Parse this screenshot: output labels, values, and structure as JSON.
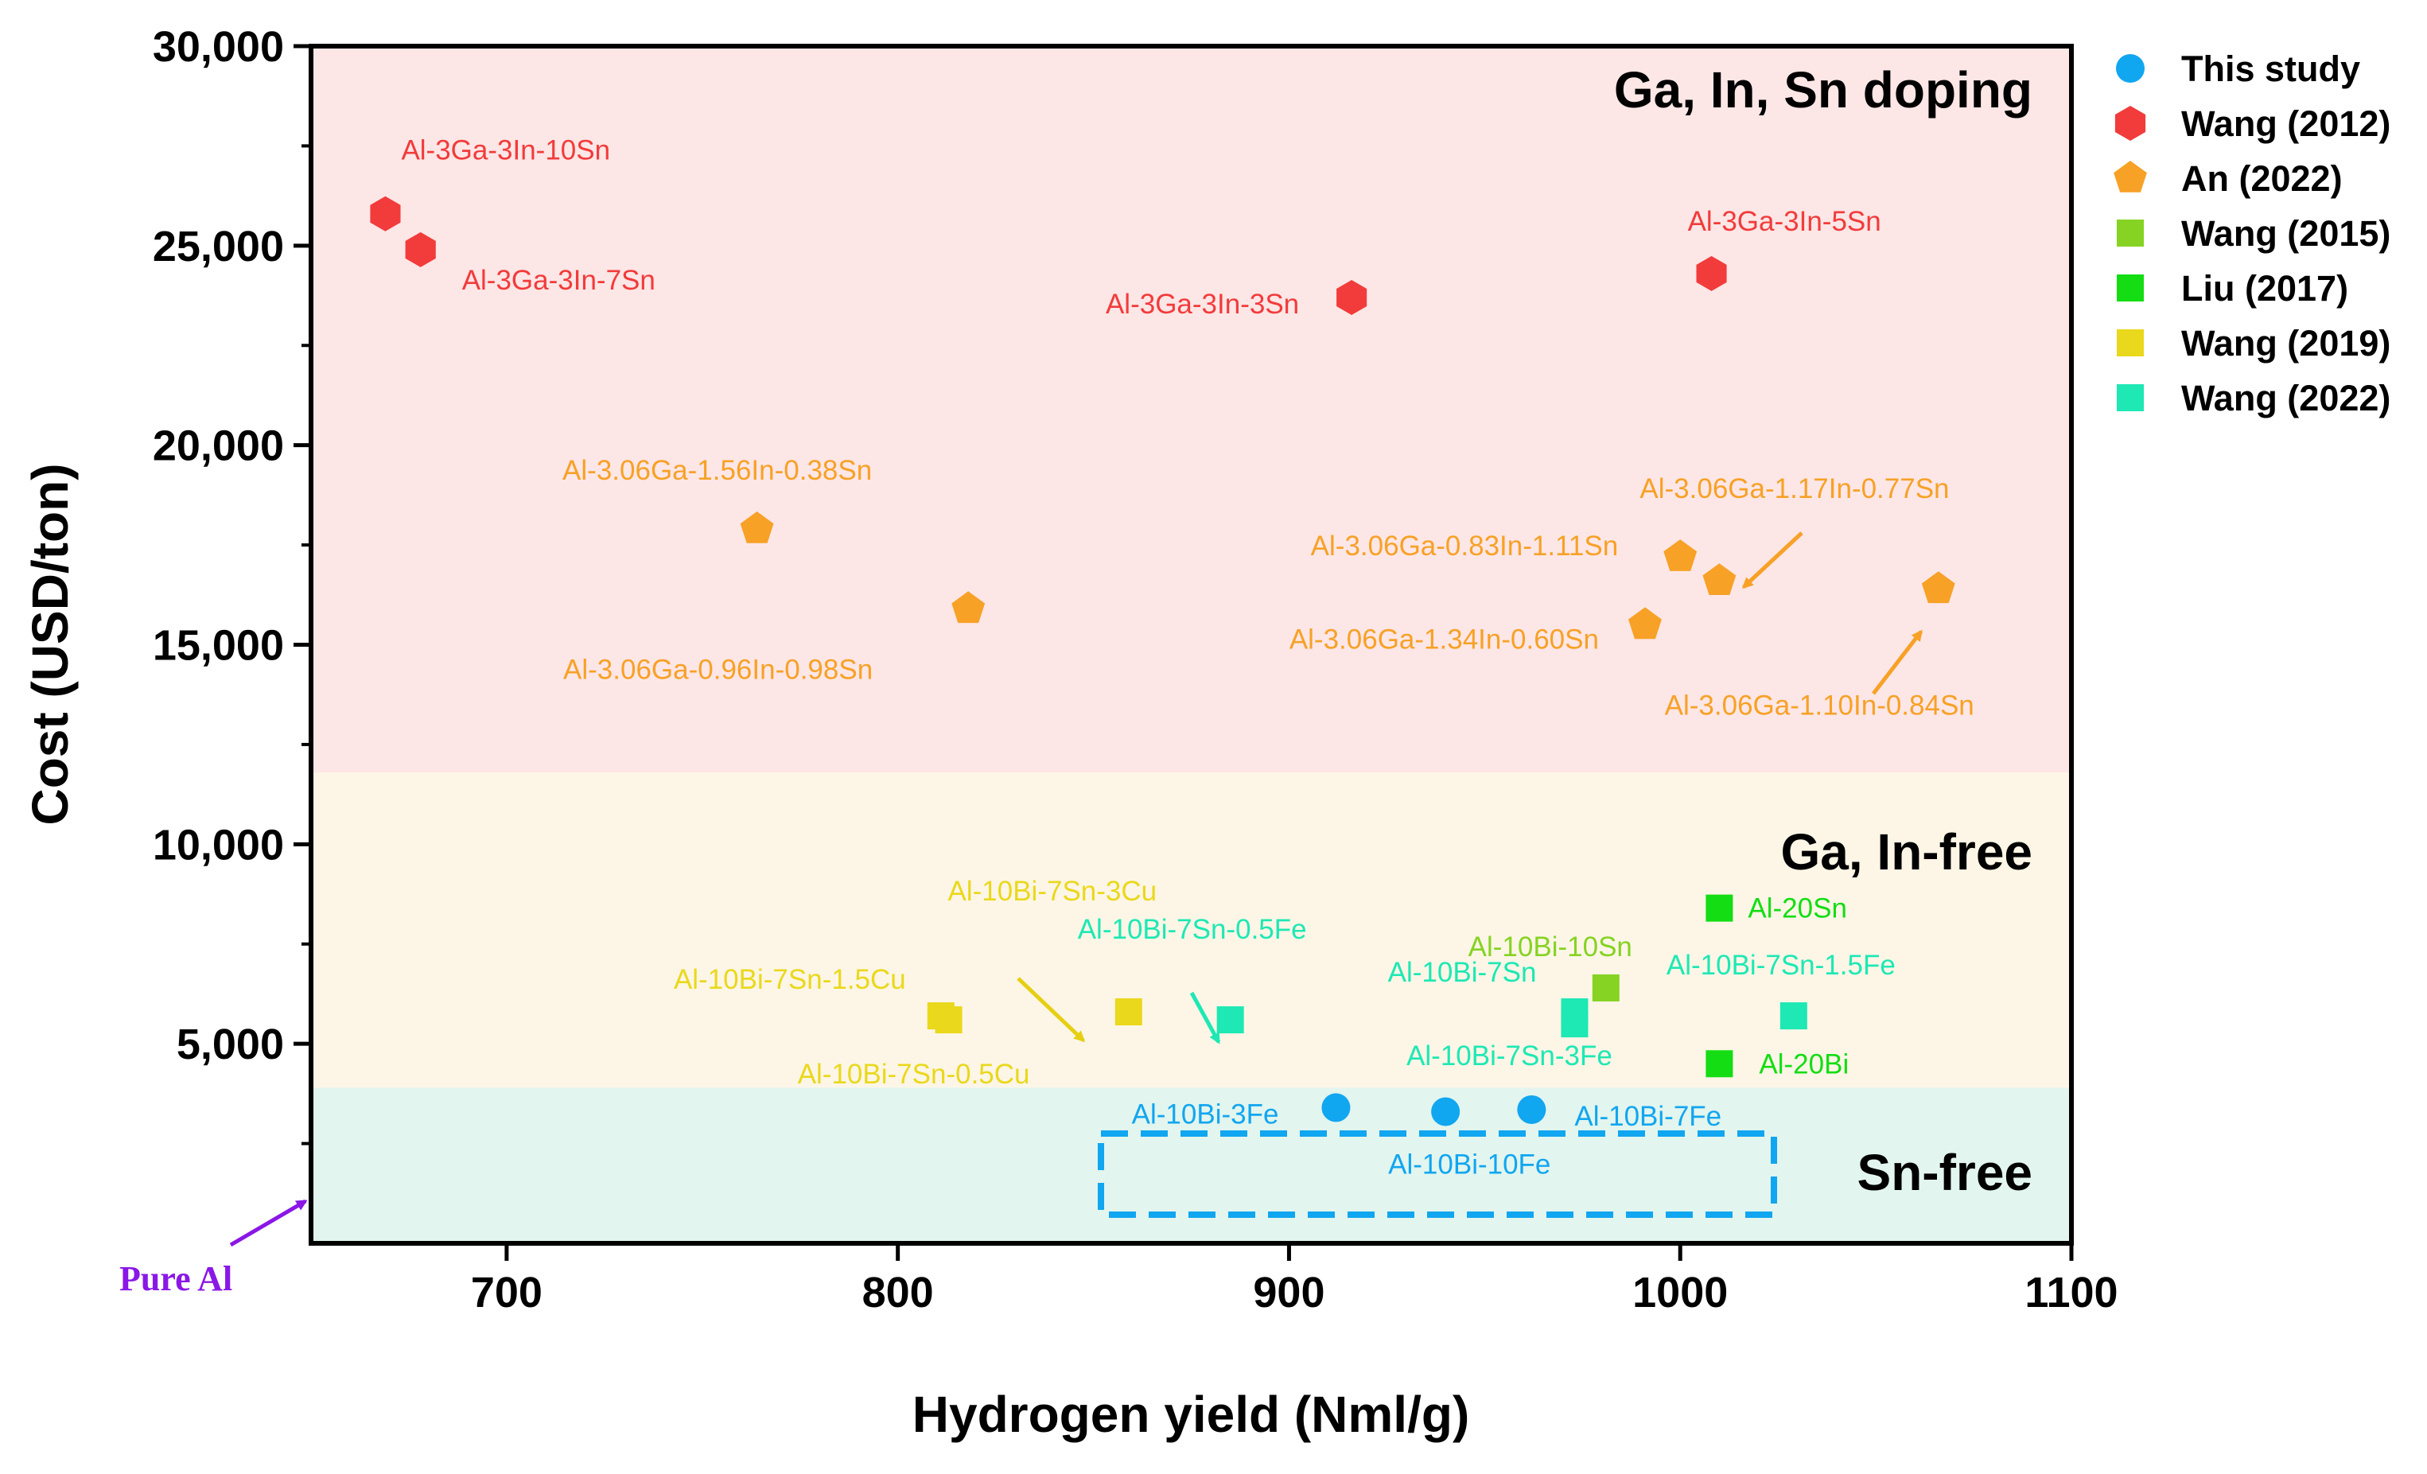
{
  "chart_data": {
    "type": "scatter",
    "xlabel": "Hydrogen yield (Nml/g)",
    "ylabel": "Cost (USD/ton)",
    "xlim": [
      650,
      1100
    ],
    "ylim": [
      0,
      30000
    ],
    "xticks": [
      700,
      800,
      900,
      1000,
      1100
    ],
    "xtick_labels": [
      "700",
      "800",
      "900",
      "1000",
      "1100"
    ],
    "yticks": [
      5000,
      10000,
      15000,
      20000,
      25000,
      30000
    ],
    "ytick_labels": [
      "5,000",
      "10,000",
      "15,000",
      "20,000",
      "25,000",
      "30,000"
    ],
    "legend_position": "outside right, top",
    "regions": [
      {
        "label": "Ga, In, Sn doping",
        "y_from": 11800,
        "y_to": 30000,
        "color": "#fde6e6"
      },
      {
        "label": "Ga, In-free",
        "y_from": 3900,
        "y_to": 11800,
        "color": "#fdf6e6"
      },
      {
        "label": "Sn-free",
        "y_from": 0,
        "y_to": 3900,
        "color": "#e2f5ee"
      }
    ],
    "series": [
      {
        "name": "This study",
        "marker": "circle",
        "color": "#11a6f0",
        "points": [
          {
            "x": 912,
            "y": 3400,
            "label": "Al-10Bi-3Fe"
          },
          {
            "x": 940,
            "y": 3300,
            "label": "Al-10Bi-10Fe"
          },
          {
            "x": 962,
            "y": 3350,
            "label": "Al-10Bi-7Fe"
          }
        ]
      },
      {
        "name": "Wang (2012)",
        "marker": "hexagon",
        "color": "#f23b3b",
        "points": [
          {
            "x": 669,
            "y": 25800,
            "label": "Al-3Ga-3In-10Sn"
          },
          {
            "x": 678,
            "y": 24900,
            "label": "Al-3Ga-3In-7Sn"
          },
          {
            "x": 916,
            "y": 23700,
            "label": "Al-3Ga-3In-3Sn"
          },
          {
            "x": 1008,
            "y": 24300,
            "label": "Al-3Ga-3In-5Sn"
          }
        ]
      },
      {
        "name": "An (2022)",
        "marker": "pentagon",
        "color": "#f7a126",
        "points": [
          {
            "x": 764,
            "y": 17900,
            "label": "Al-3.06Ga-1.56In-0.38Sn"
          },
          {
            "x": 818,
            "y": 15900,
            "label": "Al-3.06Ga-0.96In-0.98Sn"
          },
          {
            "x": 1000,
            "y": 17200,
            "label": "Al-3.06Ga-0.83In-1.11Sn"
          },
          {
            "x": 991,
            "y": 15500,
            "label": "Al-3.06Ga-1.34In-0.60Sn"
          },
          {
            "x": 1010,
            "y": 16600,
            "label": "Al-3.06Ga-1.17In-0.77Sn"
          },
          {
            "x": 1066,
            "y": 16400,
            "label": "Al-3.06Ga-1.10In-0.84Sn"
          }
        ]
      },
      {
        "name": "Wang (2015)",
        "marker": "square",
        "color": "#86d323",
        "points": [
          {
            "x": 981,
            "y": 6400,
            "label": "Al-10Bi-10Sn"
          }
        ]
      },
      {
        "name": "Liu (2017)",
        "marker": "square",
        "color": "#14dd14",
        "points": [
          {
            "x": 1010,
            "y": 8400,
            "label": "Al-20Sn"
          },
          {
            "x": 1010,
            "y": 4500,
            "label": "Al-20Bi"
          }
        ]
      },
      {
        "name": "Wang (2019)",
        "marker": "square",
        "color": "#ead81c",
        "points": [
          {
            "x": 811,
            "y": 5700,
            "label": "Al-10Bi-7Sn-1.5Cu"
          },
          {
            "x": 813,
            "y": 5600,
            "label": "Al-10Bi-7Sn-0.5Cu"
          },
          {
            "x": 859,
            "y": 5800,
            "label": "Al-10Bi-7Sn-3Cu"
          }
        ]
      },
      {
        "name": "Wang (2022)",
        "marker": "square",
        "color": "#1ee8b4",
        "points": [
          {
            "x": 885,
            "y": 5600,
            "label": "Al-10Bi-7Sn-0.5Fe"
          },
          {
            "x": 973,
            "y": 5800,
            "label": "Al-10Bi-7Sn"
          },
          {
            "x": 973,
            "y": 5500,
            "label": "Al-10Bi-7Sn-3Fe"
          },
          {
            "x": 1029,
            "y": 5700,
            "label": "Al-10Bi-7Sn-1.5Fe"
          }
        ]
      }
    ],
    "annotations": [
      {
        "text": "Pure Al",
        "color": "#8a17e6",
        "arrow_to": [
          650,
          1300
        ]
      }
    ]
  }
}
